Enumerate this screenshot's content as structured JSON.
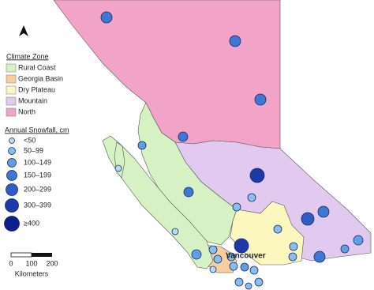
{
  "legend": {
    "climate_zone": {
      "title": "Climate Zone",
      "items": [
        "Rural Coast",
        "Georgia Basin",
        "Dry Plateau",
        "Mountain",
        "North"
      ]
    },
    "snowfall": {
      "title": "Annual Snowfall, cm",
      "items": [
        "<50",
        "50–99",
        "100–149",
        "150–199",
        "200–299",
        "300–399",
        "≥400"
      ]
    }
  },
  "scale_bar": {
    "ticks": [
      "0",
      "100",
      "200"
    ],
    "unit": "Kilometers"
  },
  "labels": {
    "city": "Vancouver"
  }
}
